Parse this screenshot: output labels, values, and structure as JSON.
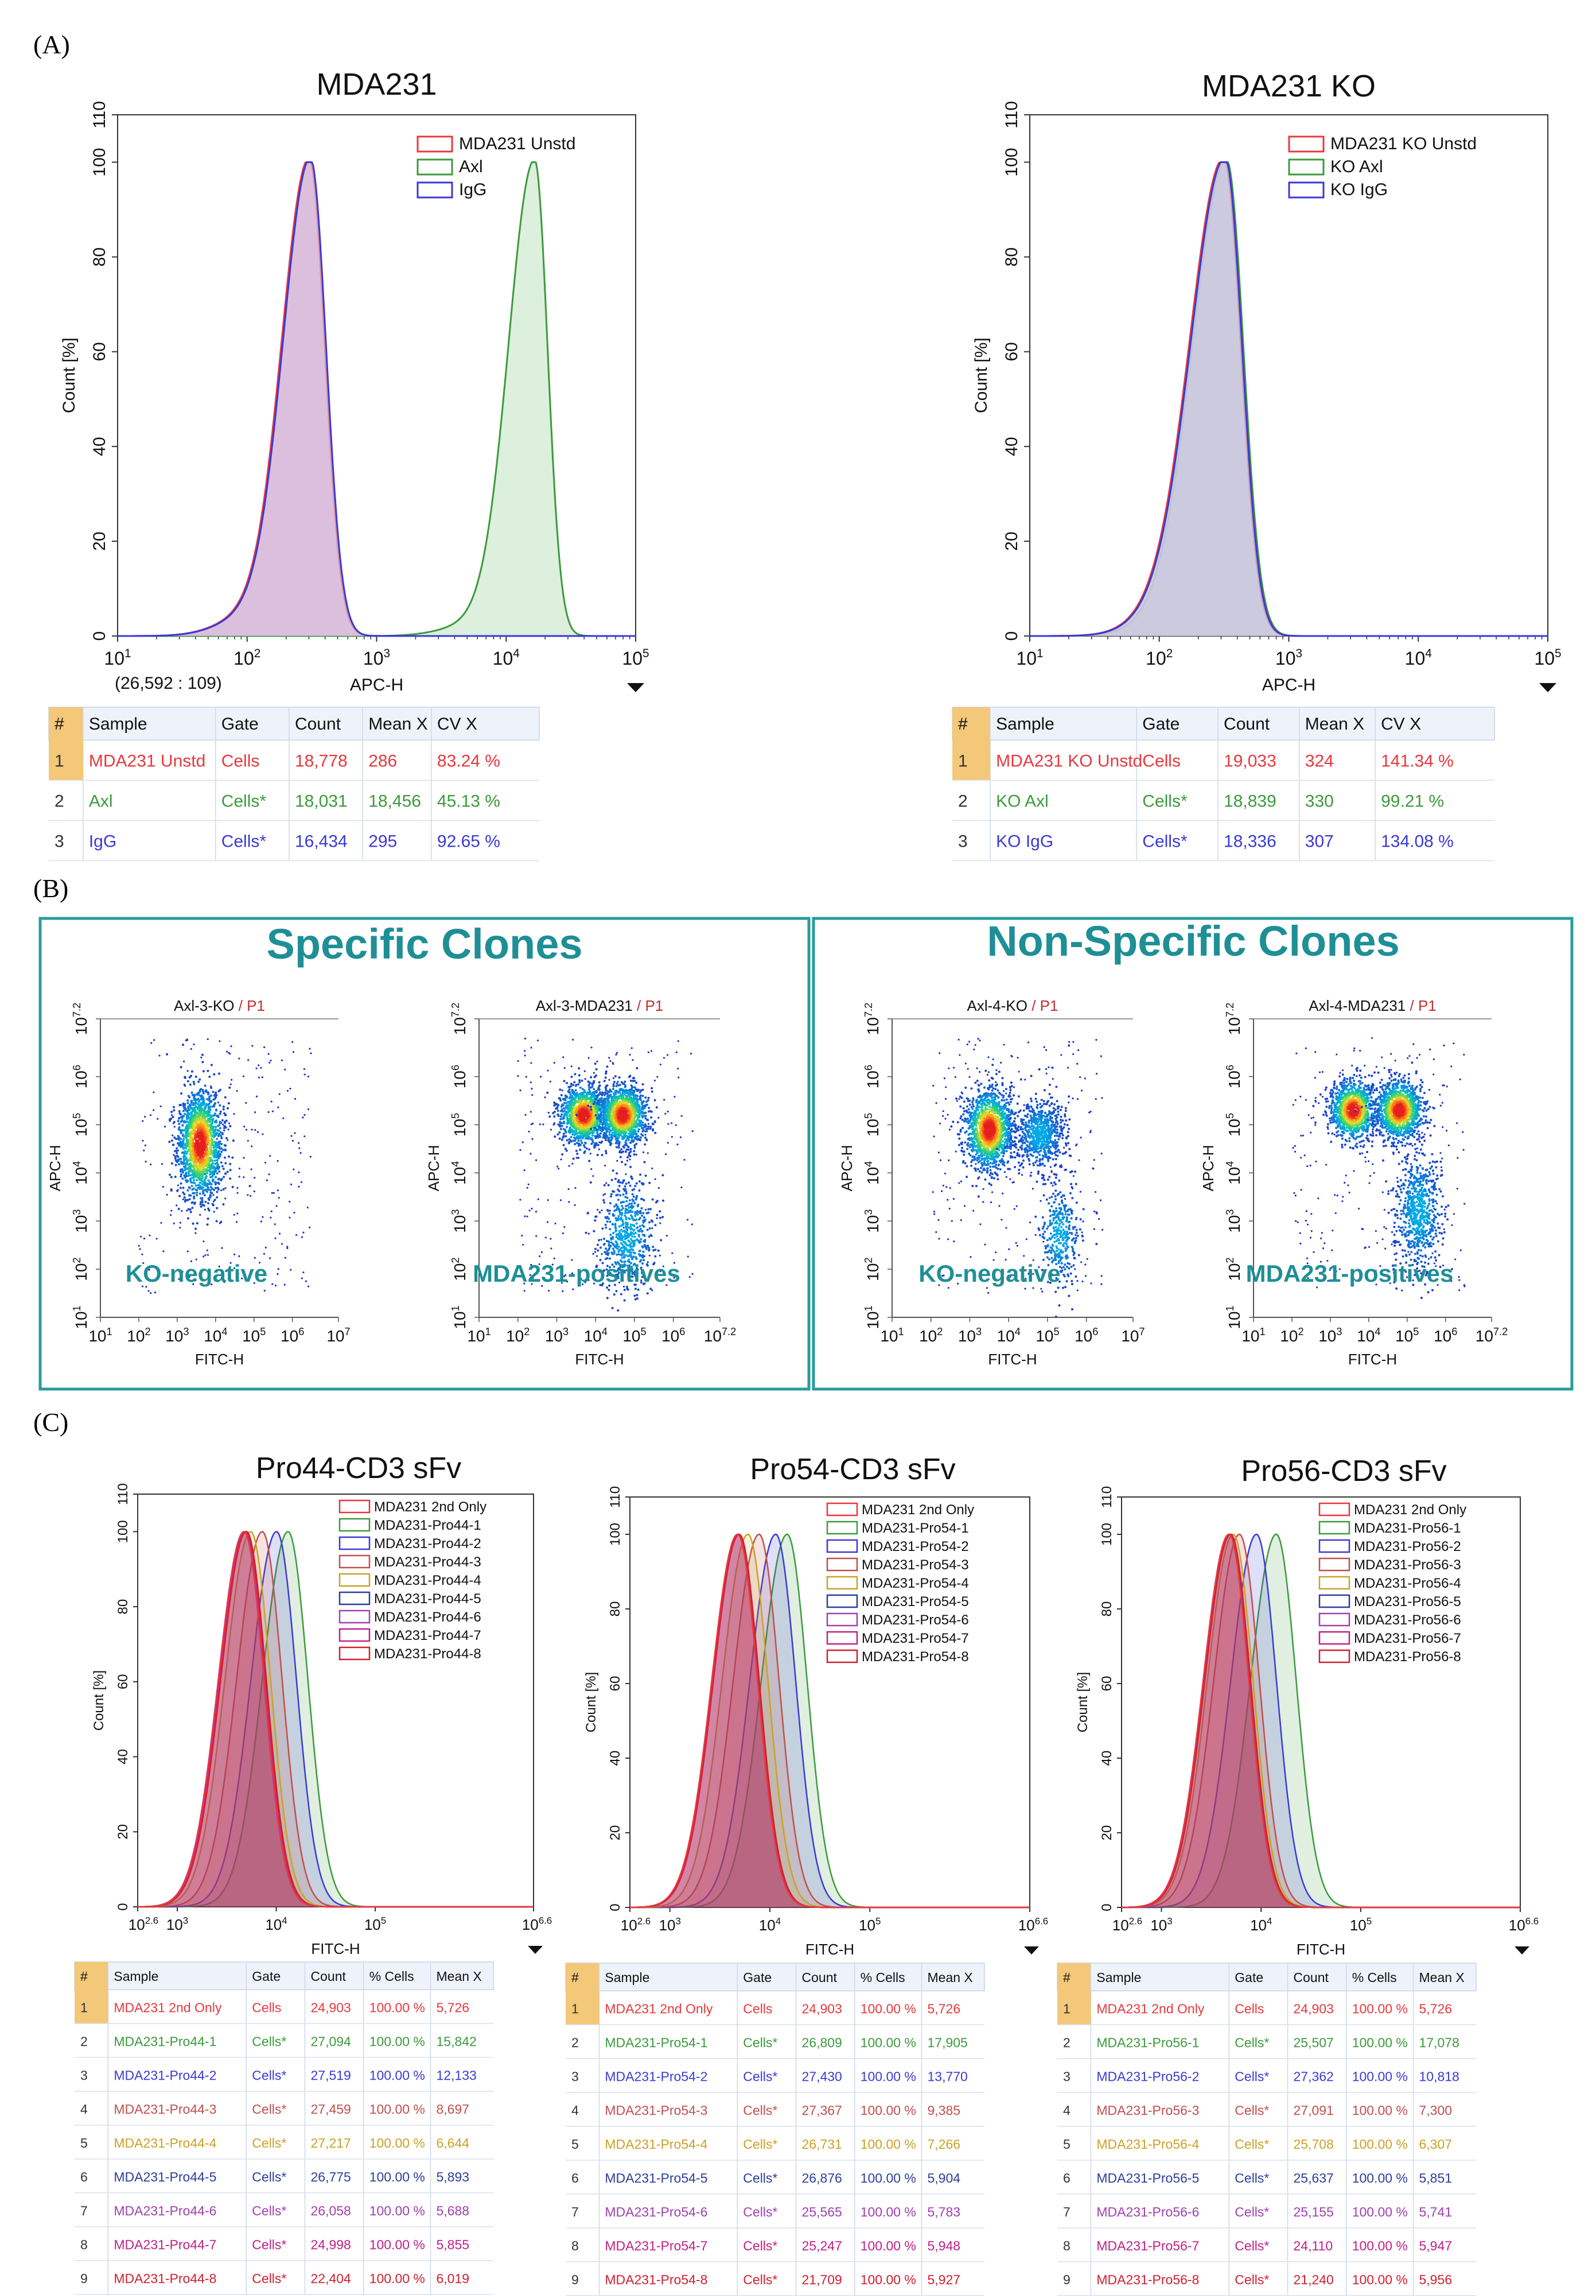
{
  "panel_labels": {
    "a": "(A)",
    "b": "(B)",
    "c": "(C)"
  },
  "chart_data": [
    {
      "id": "a1",
      "type": "line",
      "title": "MDA231",
      "xlabel": "APC-H",
      "ylabel": "Count [%]",
      "xscale": "log",
      "xlim": [
        10,
        100000
      ],
      "ylim": [
        0,
        110
      ],
      "xticks": [
        "10^1",
        "10^2",
        "10^3",
        "10^4",
        "10^5"
      ],
      "yticks": [
        0,
        20,
        40,
        60,
        80,
        100,
        110
      ],
      "coord_readout": "(26,592 : 109)",
      "legend": [
        "MDA231 Unstd",
        "Axl",
        "IgG"
      ],
      "series": [
        {
          "name": "MDA231 Unstd",
          "color": "#e8383d",
          "fill": "#d7b9d8",
          "mu": 2.48,
          "sl": 0.21,
          "sr": 0.12
        },
        {
          "name": "Axl",
          "color": "#3c9a3c",
          "fill": "#cfe8cf",
          "mu": 4.22,
          "sl": 0.2,
          "sr": 0.1
        },
        {
          "name": "IgG",
          "color": "#3a3ad6",
          "fill": "#d7b9d8",
          "mu": 2.49,
          "sl": 0.21,
          "sr": 0.12
        }
      ],
      "table": {
        "headers": [
          "#",
          "Sample",
          "Gate",
          "Count",
          "Mean X",
          "CV X"
        ],
        "rows": [
          {
            "color": "#e8383d",
            "cells": [
              "1",
              "MDA231 Unstd",
              "Cells",
              "18,778",
              "286",
              "83.24 %"
            ]
          },
          {
            "color": "#3c9a3c",
            "cells": [
              "2",
              "Axl",
              "Cells*",
              "18,031",
              "18,456",
              "45.13 %"
            ]
          },
          {
            "color": "#3a3ad6",
            "cells": [
              "3",
              "IgG",
              "Cells*",
              "16,434",
              "295",
              "92.65 %"
            ]
          }
        ]
      }
    },
    {
      "id": "a2",
      "type": "line",
      "title": "MDA231 KO",
      "xlabel": "APC-H",
      "ylabel": "Count [%]",
      "xscale": "log",
      "xlim": [
        10,
        100000
      ],
      "ylim": [
        0,
        110
      ],
      "xticks": [
        "10^1",
        "10^2",
        "10^3",
        "10^4",
        "10^5"
      ],
      "yticks": [
        0,
        20,
        40,
        60,
        80,
        100,
        110
      ],
      "legend": [
        "MDA231 KO Unstd",
        "KO Axl",
        "KO IgG"
      ],
      "series": [
        {
          "name": "MDA231 KO Unstd",
          "color": "#e8383d",
          "fill": "#d3c3d6",
          "mu": 2.5,
          "sl": 0.26,
          "sr": 0.13
        },
        {
          "name": "KO Axl",
          "color": "#3c9a3c",
          "fill": "#c7d6c7",
          "mu": 2.52,
          "sl": 0.26,
          "sr": 0.13
        },
        {
          "name": "KO IgG",
          "color": "#3a3ad6",
          "fill": "#c9c9e3",
          "mu": 2.51,
          "sl": 0.26,
          "sr": 0.13
        }
      ],
      "table": {
        "headers": [
          "#",
          "Sample",
          "Gate",
          "Count",
          "Mean X",
          "CV X"
        ],
        "rows": [
          {
            "color": "#e8383d",
            "cells": [
              "1",
              "MDA231 KO Unstd",
              "Cells",
              "19,033",
              "324",
              "141.34 %"
            ]
          },
          {
            "color": "#3c9a3c",
            "cells": [
              "2",
              "KO Axl",
              "Cells*",
              "18,839",
              "330",
              "99.21 %"
            ]
          },
          {
            "color": "#3a3ad6",
            "cells": [
              "3",
              "KO IgG",
              "Cells*",
              "18,336",
              "307",
              "134.08 %"
            ]
          }
        ]
      }
    },
    {
      "id": "b1",
      "type": "scatter",
      "title": "Axl-3-KO",
      "gate": "P1",
      "xlabel": "FITC-H",
      "ylabel": "APC-H",
      "annotation": "KO-negative",
      "xticks": [
        "10^1",
        "10^2",
        "10^3",
        "10^4",
        "10^5",
        "10^6",
        "10^7"
      ],
      "yticks": [
        "10^1",
        "10^2",
        "10^3",
        "10^4",
        "10^5",
        "10^6",
        "10^7.2"
      ],
      "xlim": [
        1,
        7.2
      ],
      "ylim": [
        1,
        7.2
      ],
      "clusters": [
        {
          "x": 3.6,
          "y": 4.6,
          "sx": 0.28,
          "sy": 0.55,
          "n": 1800,
          "dense": true
        }
      ]
    },
    {
      "id": "b2",
      "type": "scatter",
      "title": "Axl-3-MDA231",
      "gate": "P1",
      "xlabel": "FITC-H",
      "ylabel": "APC-H",
      "annotation": "MDA231-positives",
      "xticks": [
        "10^1",
        "10^2",
        "10^3",
        "10^4",
        "10^5",
        "10^6",
        "10^7.2"
      ],
      "yticks": [
        "10^1",
        "10^2",
        "10^3",
        "10^4",
        "10^5",
        "10^6",
        "10^7.2"
      ],
      "xlim": [
        1,
        7.2
      ],
      "ylim": [
        1,
        7.2
      ],
      "clusters": [
        {
          "x": 3.7,
          "y": 5.2,
          "sx": 0.3,
          "sy": 0.3,
          "n": 1300,
          "dense": true
        },
        {
          "x": 4.7,
          "y": 5.2,
          "sx": 0.3,
          "sy": 0.3,
          "n": 1300,
          "dense": true
        },
        {
          "x": 4.8,
          "y": 2.7,
          "sx": 0.35,
          "sy": 0.6,
          "n": 600,
          "dense": false
        }
      ]
    },
    {
      "id": "b3",
      "type": "scatter",
      "title": "Axl-4-KO",
      "gate": "P1",
      "xlabel": "FITC-H",
      "ylabel": "APC-H",
      "annotation": "KO-negative",
      "xticks": [
        "10^1",
        "10^2",
        "10^3",
        "10^4",
        "10^5",
        "10^6",
        "10^7"
      ],
      "yticks": [
        "10^1",
        "10^2",
        "10^3",
        "10^4",
        "10^5",
        "10^6",
        "10^7.2"
      ],
      "xlim": [
        1,
        7.2
      ],
      "ylim": [
        1,
        7.2
      ],
      "clusters": [
        {
          "x": 3.5,
          "y": 4.9,
          "sx": 0.3,
          "sy": 0.4,
          "n": 1500,
          "dense": true
        },
        {
          "x": 4.8,
          "y": 4.8,
          "sx": 0.3,
          "sy": 0.35,
          "n": 700,
          "dense": false
        },
        {
          "x": 5.3,
          "y": 2.7,
          "sx": 0.25,
          "sy": 0.5,
          "n": 350,
          "dense": false
        }
      ]
    },
    {
      "id": "b4",
      "type": "scatter",
      "title": "Axl-4-MDA231",
      "gate": "P1",
      "xlabel": "FITC-H",
      "ylabel": "APC-H",
      "annotation": "MDA231-positives",
      "xticks": [
        "10^1",
        "10^2",
        "10^3",
        "10^4",
        "10^5",
        "10^6",
        "10^7.2"
      ],
      "yticks": [
        "10^1",
        "10^2",
        "10^3",
        "10^4",
        "10^5",
        "10^6",
        "10^7.2"
      ],
      "xlim": [
        1,
        7.2
      ],
      "ylim": [
        1,
        7.2
      ],
      "clusters": [
        {
          "x": 3.6,
          "y": 5.3,
          "sx": 0.3,
          "sy": 0.3,
          "n": 1100,
          "dense": true
        },
        {
          "x": 4.8,
          "y": 5.3,
          "sx": 0.3,
          "sy": 0.3,
          "n": 1300,
          "dense": true
        },
        {
          "x": 5.3,
          "y": 3.2,
          "sx": 0.3,
          "sy": 0.6,
          "n": 700,
          "dense": false
        }
      ]
    },
    {
      "id": "c1",
      "type": "area",
      "title": "Pro44-CD3 sFv",
      "xlabel": "FITC-H",
      "ylabel": "Count [%]",
      "xscale": "log",
      "xlim_log10": [
        2.6,
        6.6
      ],
      "ylim": [
        0,
        110
      ],
      "xticks": [
        "10^2.6",
        "10^3",
        "10^4",
        "10^5",
        "10^6.6"
      ],
      "yticks": [
        0,
        20,
        40,
        60,
        80,
        100,
        110
      ],
      "legend": [
        "MDA231 2nd Only",
        "MDA231-Pro44-1",
        "MDA231-Pro44-2",
        "MDA231-Pro44-3",
        "MDA231-Pro44-4",
        "MDA231-Pro44-5",
        "MDA231-Pro44-6",
        "MDA231-Pro44-7",
        "MDA231-Pro44-8"
      ],
      "series": [
        {
          "name": "MDA231 2nd Only",
          "mean": 5726
        },
        {
          "name": "MDA231-Pro44-1",
          "mean": 15842
        },
        {
          "name": "MDA231-Pro44-2",
          "mean": 12133
        },
        {
          "name": "MDA231-Pro44-3",
          "mean": 8697
        },
        {
          "name": "MDA231-Pro44-4",
          "mean": 6644
        },
        {
          "name": "MDA231-Pro44-5",
          "mean": 5893
        },
        {
          "name": "MDA231-Pro44-6",
          "mean": 5688
        },
        {
          "name": "MDA231-Pro44-7",
          "mean": 5855
        },
        {
          "name": "MDA231-Pro44-8",
          "mean": 6019
        }
      ],
      "table": {
        "headers": [
          "#",
          "Sample",
          "Gate",
          "Count",
          "% Cells",
          "Mean X"
        ],
        "rows": [
          {
            "cells": [
              "1",
              "MDA231 2nd Only",
              "Cells",
              "24,903",
              "100.00 %",
              "5,726"
            ]
          },
          {
            "cells": [
              "2",
              "MDA231-Pro44-1",
              "Cells*",
              "27,094",
              "100.00 %",
              "15,842"
            ]
          },
          {
            "cells": [
              "3",
              "MDA231-Pro44-2",
              "Cells*",
              "27,519",
              "100.00 %",
              "12,133"
            ]
          },
          {
            "cells": [
              "4",
              "MDA231-Pro44-3",
              "Cells*",
              "27,459",
              "100.00 %",
              "8,697"
            ]
          },
          {
            "cells": [
              "5",
              "MDA231-Pro44-4",
              "Cells*",
              "27,217",
              "100.00 %",
              "6,644"
            ]
          },
          {
            "cells": [
              "6",
              "MDA231-Pro44-5",
              "Cells*",
              "26,775",
              "100.00 %",
              "5,893"
            ]
          },
          {
            "cells": [
              "7",
              "MDA231-Pro44-6",
              "Cells*",
              "26,058",
              "100.00 %",
              "5,688"
            ]
          },
          {
            "cells": [
              "8",
              "MDA231-Pro44-7",
              "Cells*",
              "24,998",
              "100.00 %",
              "5,855"
            ]
          },
          {
            "cells": [
              "9",
              "MDA231-Pro44-8",
              "Cells*",
              "22,404",
              "100.00 %",
              "6,019"
            ]
          }
        ]
      }
    },
    {
      "id": "c2",
      "type": "area",
      "title": "Pro54-CD3 sFv",
      "xlabel": "FITC-H",
      "ylabel": "Count [%]",
      "xscale": "log",
      "xlim_log10": [
        2.6,
        6.6
      ],
      "ylim": [
        0,
        110
      ],
      "xticks": [
        "10^2.6",
        "10^3",
        "10^4",
        "10^5",
        "10^6.6"
      ],
      "yticks": [
        0,
        20,
        40,
        60,
        80,
        100,
        110
      ],
      "legend": [
        "MDA231 2nd Only",
        "MDA231-Pro54-1",
        "MDA231-Pro54-2",
        "MDA231-Pro54-3",
        "MDA231-Pro54-4",
        "MDA231-Pro54-5",
        "MDA231-Pro54-6",
        "MDA231-Pro54-7",
        "MDA231-Pro54-8"
      ],
      "series": [
        {
          "name": "MDA231 2nd Only",
          "mean": 5726
        },
        {
          "name": "MDA231-Pro54-1",
          "mean": 17905
        },
        {
          "name": "MDA231-Pro54-2",
          "mean": 13770
        },
        {
          "name": "MDA231-Pro54-3",
          "mean": 9385
        },
        {
          "name": "MDA231-Pro54-4",
          "mean": 7266
        },
        {
          "name": "MDA231-Pro54-5",
          "mean": 5904
        },
        {
          "name": "MDA231-Pro54-6",
          "mean": 5783
        },
        {
          "name": "MDA231-Pro54-7",
          "mean": 5948
        },
        {
          "name": "MDA231-Pro54-8",
          "mean": 5927
        }
      ],
      "table": {
        "headers": [
          "#",
          "Sample",
          "Gate",
          "Count",
          "% Cells",
          "Mean X"
        ],
        "rows": [
          {
            "cells": [
              "1",
              "MDA231 2nd Only",
              "Cells",
              "24,903",
              "100.00 %",
              "5,726"
            ]
          },
          {
            "cells": [
              "2",
              "MDA231-Pro54-1",
              "Cells*",
              "26,809",
              "100.00 %",
              "17,905"
            ]
          },
          {
            "cells": [
              "3",
              "MDA231-Pro54-2",
              "Cells*",
              "27,430",
              "100.00 %",
              "13,770"
            ]
          },
          {
            "cells": [
              "4",
              "MDA231-Pro54-3",
              "Cells*",
              "27,367",
              "100.00 %",
              "9,385"
            ]
          },
          {
            "cells": [
              "5",
              "MDA231-Pro54-4",
              "Cells*",
              "26,731",
              "100.00 %",
              "7,266"
            ]
          },
          {
            "cells": [
              "6",
              "MDA231-Pro54-5",
              "Cells*",
              "26,876",
              "100.00 %",
              "5,904"
            ]
          },
          {
            "cells": [
              "7",
              "MDA231-Pro54-6",
              "Cells*",
              "25,565",
              "100.00 %",
              "5,783"
            ]
          },
          {
            "cells": [
              "8",
              "MDA231-Pro54-7",
              "Cells*",
              "25,247",
              "100.00 %",
              "5,948"
            ]
          },
          {
            "cells": [
              "9",
              "MDA231-Pro54-8",
              "Cells*",
              "21,709",
              "100.00 %",
              "5,927"
            ]
          }
        ]
      }
    },
    {
      "id": "c3",
      "type": "area",
      "title": "Pro56-CD3 sFv",
      "xlabel": "FITC-H",
      "ylabel": "Count [%]",
      "xscale": "log",
      "xlim_log10": [
        2.6,
        6.6
      ],
      "ylim": [
        0,
        110
      ],
      "xticks": [
        "10^2.6",
        "10^3",
        "10^4",
        "10^5",
        "10^6.6"
      ],
      "yticks": [
        0,
        20,
        40,
        60,
        80,
        100,
        110
      ],
      "legend": [
        "MDA231 2nd Only",
        "MDA231-Pro56-1",
        "MDA231-Pro56-2",
        "MDA231-Pro56-3",
        "MDA231-Pro56-4",
        "MDA231-Pro56-5",
        "MDA231-Pro56-6",
        "MDA231-Pro56-7",
        "MDA231-Pro56-8"
      ],
      "series": [
        {
          "name": "MDA231 2nd Only",
          "mean": 5726
        },
        {
          "name": "MDA231-Pro56-1",
          "mean": 17078
        },
        {
          "name": "MDA231-Pro56-2",
          "mean": 10818
        },
        {
          "name": "MDA231-Pro56-3",
          "mean": 7300
        },
        {
          "name": "MDA231-Pro56-4",
          "mean": 6307
        },
        {
          "name": "MDA231-Pro56-5",
          "mean": 5851
        },
        {
          "name": "MDA231-Pro56-6",
          "mean": 5741
        },
        {
          "name": "MDA231-Pro56-7",
          "mean": 5947
        },
        {
          "name": "MDA231-Pro56-8",
          "mean": 5956
        }
      ],
      "table": {
        "headers": [
          "#",
          "Sample",
          "Gate",
          "Count",
          "% Cells",
          "Mean X"
        ],
        "rows": [
          {
            "cells": [
              "1",
              "MDA231 2nd Only",
              "Cells",
              "24,903",
              "100.00 %",
              "5,726"
            ]
          },
          {
            "cells": [
              "2",
              "MDA231-Pro56-1",
              "Cells*",
              "25,507",
              "100.00 %",
              "17,078"
            ]
          },
          {
            "cells": [
              "3",
              "MDA231-Pro56-2",
              "Cells*",
              "27,362",
              "100.00 %",
              "10,818"
            ]
          },
          {
            "cells": [
              "4",
              "MDA231-Pro56-3",
              "Cells*",
              "27,091",
              "100.00 %",
              "7,300"
            ]
          },
          {
            "cells": [
              "5",
              "MDA231-Pro56-4",
              "Cells*",
              "25,708",
              "100.00 %",
              "6,307"
            ]
          },
          {
            "cells": [
              "6",
              "MDA231-Pro56-5",
              "Cells*",
              "25,637",
              "100.00 %",
              "5,851"
            ]
          },
          {
            "cells": [
              "7",
              "MDA231-Pro56-6",
              "Cells*",
              "25,155",
              "100.00 %",
              "5,741"
            ]
          },
          {
            "cells": [
              "8",
              "MDA231-Pro56-7",
              "Cells*",
              "24,110",
              "100.00 %",
              "5,947"
            ]
          },
          {
            "cells": [
              "9",
              "MDA231-Pro56-8",
              "Cells*",
              "21,240",
              "100.00 %",
              "5,956"
            ]
          }
        ]
      }
    }
  ],
  "panel_b": {
    "specific_title": "Specific Clones",
    "nonspecific_title": "Non-Specific Clones",
    "border_color": "#2a9c9c"
  },
  "panel_c_colors": [
    "#e8383d",
    "#3c9a3c",
    "#3a3ad6",
    "#c0504d",
    "#c9a227",
    "#2c3e9c",
    "#a040b0",
    "#c0208a",
    "#d02030"
  ]
}
